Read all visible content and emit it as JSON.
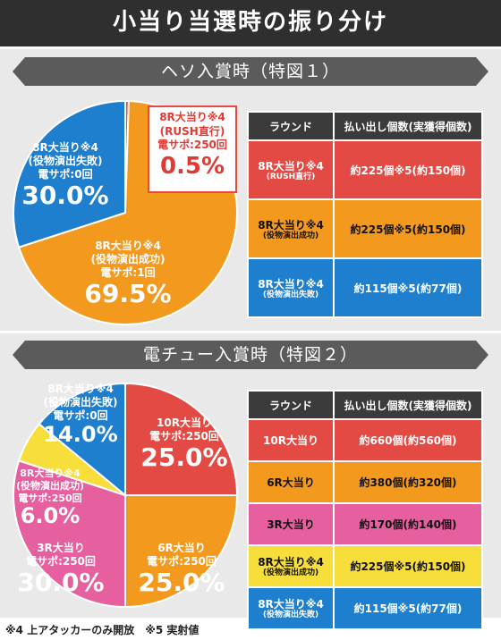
{
  "header": {
    "title": "小当り当選時の振り分け"
  },
  "section1": {
    "title": "ヘソ入賞時（特図１）",
    "chart_data": {
      "type": "pie",
      "slices": [
        {
          "label_lines": [
            "8R大当り※4",
            "(RUSH直行)",
            "電サポ:250回"
          ],
          "value": 0.5,
          "value_label": "0.5%",
          "color": "#e34a43"
        },
        {
          "label_lines": [
            "8R大当り※4",
            "(役物演出成功)",
            "電サポ:1回"
          ],
          "value": 69.5,
          "value_label": "69.5%",
          "color": "#f39a1e"
        },
        {
          "label_lines": [
            "8R大当り※4",
            "(役物演出失敗)",
            "電サポ:0回"
          ],
          "value": 30.0,
          "value_label": "30.0%",
          "color": "#1e7fcf"
        }
      ]
    },
    "table": {
      "headers": [
        "ラウンド",
        "払い出し個数(実獲得個数)"
      ],
      "rows": [
        {
          "round": "8R大当り※4",
          "round_sub": "(RUSH直行)",
          "payout": "約225個※5(約150個)",
          "color": "#e34a43"
        },
        {
          "round": "8R大当り※4",
          "round_sub": "(役物演出成功)",
          "payout": "約225個※5(約150個)",
          "color": "#f39a1e"
        },
        {
          "round": "8R大当り※4",
          "round_sub": "(役物演出失敗)",
          "payout": "約115個※5(約77個)",
          "color": "#1e7fcf"
        }
      ]
    }
  },
  "section2": {
    "title": "電チュー入賞時（特図２）",
    "chart_data": {
      "type": "pie",
      "slices": [
        {
          "label_lines": [
            "10R大当り",
            "電サポ:250回"
          ],
          "value": 25.0,
          "value_label": "25.0%",
          "color": "#e34a43"
        },
        {
          "label_lines": [
            "6R大当り",
            "電サポ:250回"
          ],
          "value": 25.0,
          "value_label": "25.0%",
          "color": "#f39a1e"
        },
        {
          "label_lines": [
            "3R大当り",
            "電サポ:250回"
          ],
          "value": 30.0,
          "value_label": "30.0%",
          "color": "#e65f9f"
        },
        {
          "label_lines": [
            "8R大当り※4",
            "(役物演出成功)",
            "電サポ:250回"
          ],
          "value": 6.0,
          "value_label": "6.0%",
          "color": "#f7de3a"
        },
        {
          "label_lines": [
            "8R大当り※4",
            "(役物演出失敗)",
            "電サポ:0回"
          ],
          "value": 14.0,
          "value_label": "14.0%",
          "color": "#1e7fcf"
        }
      ]
    },
    "table": {
      "headers": [
        "ラウンド",
        "払い出し個数(実獲得個数)"
      ],
      "rows": [
        {
          "round": "10R大当り",
          "round_sub": "",
          "payout": "約660個(約560個)",
          "color": "#e34a43"
        },
        {
          "round": "6R大当り",
          "round_sub": "",
          "payout": "約380個(約320個)",
          "color": "#f39a1e"
        },
        {
          "round": "3R大当り",
          "round_sub": "",
          "payout": "約170個(約140個)",
          "color": "#e65f9f"
        },
        {
          "round": "8R大当り※4",
          "round_sub": "(役物演出成功)",
          "payout": "約225個※5(約150個)",
          "color": "#f7de3a"
        },
        {
          "round": "8R大当り※4",
          "round_sub": "(役物演出失敗)",
          "payout": "約115個※5(約77個)",
          "color": "#1e7fcf"
        }
      ]
    }
  },
  "footnote": "※4 上アタッカーのみ開放　※5 実射値"
}
